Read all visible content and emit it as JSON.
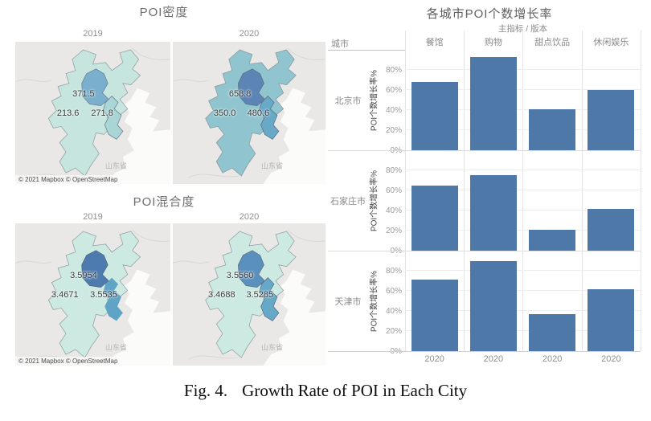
{
  "caption": {
    "label": "Fig. 4.",
    "text": "Growth Rate of POI in Each City"
  },
  "map_panels": {
    "density": {
      "title": "POI密度",
      "attribution": "© 2021 Mapbox © OpenStreetMap",
      "region_watermark": "山东省",
      "maps": [
        {
          "year": "2019",
          "beijing_value": "371.5",
          "hebei_value": "213.6",
          "tianjin_value": "271.8",
          "beijing_color": "#7ab0cd",
          "hebei_color": "#c6e5de",
          "tianjin_color": "#aad5d6"
        },
        {
          "year": "2020",
          "beijing_value": "658.8",
          "hebei_value": "350.0",
          "tianjin_value": "480.6",
          "beijing_color": "#5c84b5",
          "hebei_color": "#90c5cf",
          "tianjin_color": "#67a9c7"
        }
      ]
    },
    "mixing": {
      "title": "POI混合度",
      "attribution": "© 2021 Mapbox © OpenStreetMap",
      "region_watermark": "山东省",
      "maps": [
        {
          "year": "2019",
          "beijing_value": "3.5954",
          "hebei_value": "3.4671",
          "tianjin_value": "3.5535",
          "beijing_color": "#4d7bb0",
          "hebei_color": "#cdeae2",
          "tianjin_color": "#5fa4c6"
        },
        {
          "year": "2020",
          "beijing_value": "3.5560",
          "hebei_value": "3.4688",
          "tianjin_value": "3.5285",
          "beijing_color": "#5a90bd",
          "hebei_color": "#cdeae2",
          "tianjin_color": "#66a8c7"
        }
      ]
    }
  },
  "bar_chart": {
    "title": "各城市POI个数增长率",
    "subtitle": "主指标 / 版本",
    "corner_header": "城市",
    "ylabel": "POI个数增长率%",
    "yticks": [
      "80%",
      "60%",
      "40%",
      "20%",
      "0%"
    ],
    "xtick": "2020",
    "bar_color": "#4e78a8",
    "columns": [
      "餐馆",
      "购物",
      "甜点饮品",
      "休闲娱乐"
    ],
    "rows": [
      {
        "city": "北京市",
        "values": [
          68,
          93,
          41,
          60
        ]
      },
      {
        "city": "石家庄市",
        "values": [
          65,
          75,
          21,
          42
        ]
      },
      {
        "city": "天津市",
        "values": [
          71,
          90,
          37,
          62
        ]
      }
    ]
  },
  "chart_data": [
    {
      "type": "heatmap",
      "subtype": "choropleth-map",
      "title": "POI密度",
      "categories": [
        "2019",
        "2020"
      ],
      "regions": [
        "北京",
        "河北",
        "天津"
      ],
      "series": [
        {
          "name": "2019",
          "values": {
            "北京": 371.5,
            "河北": 213.6,
            "天津": 271.8
          }
        },
        {
          "name": "2020",
          "values": {
            "北京": 658.8,
            "河北": 350.0,
            "天津": 480.6
          }
        }
      ],
      "annotations": [
        "山东省",
        "© 2021 Mapbox © OpenStreetMap"
      ]
    },
    {
      "type": "heatmap",
      "subtype": "choropleth-map",
      "title": "POI混合度",
      "categories": [
        "2019",
        "2020"
      ],
      "regions": [
        "北京",
        "河北",
        "天津"
      ],
      "series": [
        {
          "name": "2019",
          "values": {
            "北京": 3.5954,
            "河北": 3.4671,
            "天津": 3.5535
          }
        },
        {
          "name": "2020",
          "values": {
            "北京": 3.556,
            "河北": 3.4688,
            "天津": 3.5285
          }
        }
      ],
      "annotations": [
        "山东省",
        "© 2021 Mapbox © OpenStreetMap"
      ]
    },
    {
      "type": "bar",
      "title": "各城市POI个数增长率",
      "subtitle": "主指标 / 版本",
      "categories": [
        "餐馆",
        "购物",
        "甜点饮品",
        "休闲娱乐"
      ],
      "series": [
        {
          "name": "北京市",
          "values": [
            68,
            93,
            41,
            60
          ]
        },
        {
          "name": "石家庄市",
          "values": [
            65,
            75,
            21,
            42
          ]
        },
        {
          "name": "天津市",
          "values": [
            71,
            90,
            37,
            62
          ]
        }
      ],
      "x_tick_label_per_column": "2020",
      "xlabel": "",
      "ylabel": "POI个数增长率%",
      "ylim": [
        0,
        100
      ],
      "yticks": [
        0,
        20,
        40,
        60,
        80
      ],
      "grid": true,
      "legend_position": "none",
      "layout": "small-multiples: rows = cities, columns = POI categories"
    }
  ]
}
